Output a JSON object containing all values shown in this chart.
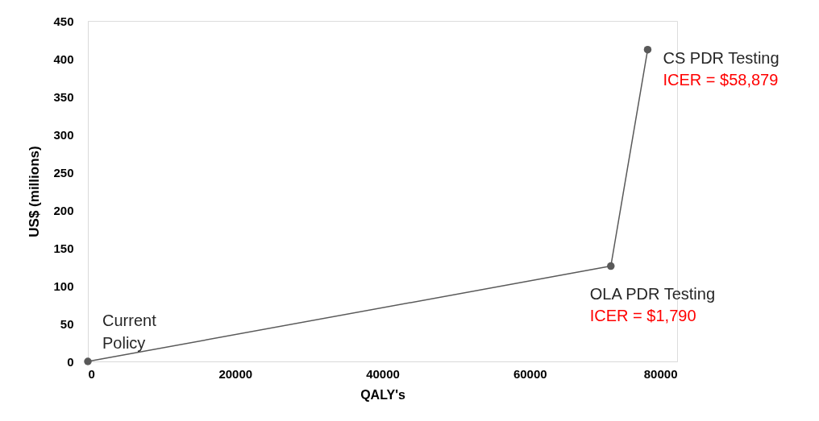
{
  "chart_data": {
    "type": "line",
    "xlabel": "QALY's",
    "ylabel": "US$ (millions)",
    "x": [
      0,
      71000,
      76000
    ],
    "series": [
      {
        "color": "#595959",
        "values": [
          0,
          126,
          412
        ]
      }
    ],
    "marker": "circle",
    "line_style": "solid",
    "grid": false,
    "xlim": [
      0,
      80000
    ],
    "xticks": [
      0,
      20000,
      40000,
      60000,
      80000
    ],
    "ylim": [
      0,
      450
    ],
    "yticks": [
      0,
      50,
      100,
      150,
      200,
      250,
      300,
      350,
      400,
      450
    ],
    "annotations": [
      {
        "text": "Current\nPolicy",
        "x": 0,
        "y": 0
      },
      {
        "text": "CS PDR Testing",
        "x": 76000,
        "y": 412
      },
      {
        "text": "ICER = $58,879",
        "x": 76000,
        "y": 412
      },
      {
        "text": "OLA PDR Testing",
        "x": 71000,
        "y": 126
      },
      {
        "text": "ICER = $1,790",
        "x": 71000,
        "y": 126
      }
    ]
  }
}
